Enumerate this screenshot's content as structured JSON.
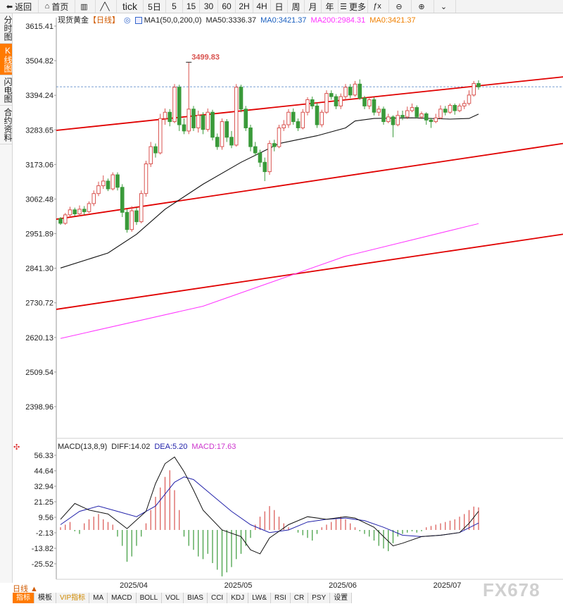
{
  "toolbar": {
    "items": [
      {
        "label": "返回",
        "icon": "back-arrow-icon"
      },
      {
        "label": "首页",
        "icon": "home-icon"
      },
      {
        "label": "",
        "icon": "chart-bars-icon"
      },
      {
        "label": "",
        "icon": "line-chart-icon"
      },
      {
        "label": "tick",
        "icon": ""
      },
      {
        "label": "5日",
        "icon": ""
      },
      {
        "label": "5",
        "icon": ""
      },
      {
        "label": "15",
        "icon": ""
      },
      {
        "label": "30",
        "icon": ""
      },
      {
        "label": "60",
        "icon": ""
      },
      {
        "label": "2H",
        "icon": ""
      },
      {
        "label": "4H",
        "icon": ""
      },
      {
        "label": "日",
        "icon": ""
      },
      {
        "label": "周",
        "icon": ""
      },
      {
        "label": "月",
        "icon": ""
      },
      {
        "label": "年",
        "icon": ""
      },
      {
        "label": "更多",
        "icon": "menu-icon"
      },
      {
        "label": "",
        "icon": "fx-icon"
      },
      {
        "label": "",
        "icon": "zoom-out-icon"
      },
      {
        "label": "",
        "icon": "zoom-in-icon"
      },
      {
        "label": "",
        "icon": "chevron-down-icon"
      }
    ]
  },
  "sidebar": {
    "tabs": [
      {
        "label": "分时图",
        "active": false
      },
      {
        "label": "K线图",
        "active": true
      },
      {
        "label": "闪电图",
        "active": false
      },
      {
        "label": "合约资料",
        "active": false
      }
    ]
  },
  "main_legend": {
    "symbol": "现货黄金",
    "period": "【日线】",
    "ma1": "MA1(50,0,200,0)",
    "ma50": "MA50:3336.37",
    "ma0": "MA0:3421.37",
    "ma200": "MA200:2984.31",
    "ma0b": "MA0:3421.37"
  },
  "macd_legend": {
    "name": "MACD(13,8,9)",
    "diff": "DIFF:14.02",
    "dea": "DEA:5.20",
    "macd": "MACD:17.63"
  },
  "bottom": {
    "period_select": "日线 ▲",
    "tabs": [
      {
        "label": "指标",
        "active": true
      },
      {
        "label": "模板",
        "active": false
      },
      {
        "label": "VIP指标",
        "active": false,
        "vip": true
      },
      {
        "label": "MA",
        "active": false
      },
      {
        "label": "MACD",
        "active": false
      },
      {
        "label": "BOLL",
        "active": false
      },
      {
        "label": "VOL",
        "active": false
      },
      {
        "label": "BIAS",
        "active": false
      },
      {
        "label": "CCI",
        "active": false
      },
      {
        "label": "KDJ",
        "active": false
      },
      {
        "label": "LW&",
        "active": false
      },
      {
        "label": "RSI",
        "active": false
      },
      {
        "label": "CR",
        "active": false
      },
      {
        "label": "PSY",
        "active": false
      },
      {
        "label": "设置",
        "active": false
      }
    ]
  },
  "watermark": "FX678",
  "colors": {
    "up": "#d9534f",
    "down": "#3a9a3a",
    "ma50": "#111111",
    "ma200": "#ff33ff",
    "channel": "#e00000",
    "diff": "#111111",
    "dea": "#2222aa",
    "macd_color": "#cc33cc"
  },
  "chart_data": [
    {
      "type": "candlestick",
      "title": "现货黄金【日线】",
      "yticks": [
        3615.41,
        3504.82,
        3394.24,
        3283.65,
        3173.06,
        3062.48,
        2951.89,
        2841.3,
        2730.72,
        2620.13,
        2509.54,
        2398.96
      ],
      "ylim": [
        2351,
        3637
      ],
      "xticks": [
        {
          "label": "2025/04",
          "index": 16
        },
        {
          "label": "2025/05",
          "index": 38
        },
        {
          "label": "2025/06",
          "index": 60
        },
        {
          "label": "2025/07",
          "index": 82
        }
      ],
      "max_annotation": {
        "label": "3499.83",
        "index": 27,
        "value": 3499.83
      },
      "current_price": 3421.37,
      "candles": [
        [
          3000,
          2985,
          3005,
          2980
        ],
        [
          2985,
          3012,
          3018,
          2980
        ],
        [
          3012,
          3028,
          3038,
          3005
        ],
        [
          3028,
          3015,
          3035,
          3008
        ],
        [
          3015,
          3030,
          3042,
          3008
        ],
        [
          3030,
          3022,
          3040,
          3012
        ],
        [
          3022,
          3048,
          3055,
          3018
        ],
        [
          3048,
          3080,
          3090,
          3040
        ],
        [
          3080,
          3105,
          3118,
          3072
        ],
        [
          3105,
          3120,
          3138,
          3095
        ],
        [
          3120,
          3095,
          3128,
          3088
        ],
        [
          3095,
          3140,
          3148,
          3090
        ],
        [
          3140,
          3100,
          3148,
          3090
        ],
        [
          3100,
          3020,
          3110,
          3005
        ],
        [
          3020,
          2965,
          3030,
          2955
        ],
        [
          2965,
          3025,
          3040,
          2958
        ],
        [
          3025,
          2990,
          3035,
          2980
        ],
        [
          2990,
          3080,
          3090,
          2985
        ],
        [
          3080,
          3175,
          3185,
          3070
        ],
        [
          3175,
          3230,
          3245,
          3165
        ],
        [
          3230,
          3210,
          3240,
          3195
        ],
        [
          3210,
          3320,
          3335,
          3205
        ],
        [
          3320,
          3340,
          3352,
          3300
        ],
        [
          3340,
          3310,
          3350,
          3295
        ],
        [
          3310,
          3420,
          3430,
          3305
        ],
        [
          3420,
          3300,
          3428,
          3280
        ],
        [
          3300,
          3280,
          3320,
          3270
        ],
        [
          3280,
          3350,
          3499.83,
          3270
        ],
        [
          3350,
          3290,
          3360,
          3280
        ],
        [
          3290,
          3330,
          3345,
          3275
        ],
        [
          3330,
          3285,
          3340,
          3270
        ],
        [
          3285,
          3340,
          3352,
          3278
        ],
        [
          3340,
          3260,
          3348,
          3250
        ],
        [
          3260,
          3230,
          3272,
          3220
        ],
        [
          3230,
          3310,
          3320,
          3220
        ],
        [
          3310,
          3260,
          3318,
          3245
        ],
        [
          3260,
          3235,
          3280,
          3225
        ],
        [
          3235,
          3420,
          3430,
          3230
        ],
        [
          3420,
          3350,
          3428,
          3340
        ],
        [
          3350,
          3290,
          3360,
          3280
        ],
        [
          3290,
          3230,
          3300,
          3215
        ],
        [
          3230,
          3210,
          3245,
          3200
        ],
        [
          3210,
          3180,
          3220,
          3165
        ],
        [
          3180,
          3150,
          3195,
          3120
        ],
        [
          3150,
          3240,
          3250,
          3140
        ],
        [
          3240,
          3230,
          3252,
          3215
        ],
        [
          3230,
          3290,
          3300,
          3225
        ],
        [
          3290,
          3300,
          3315,
          3280
        ],
        [
          3300,
          3340,
          3350,
          3290
        ],
        [
          3340,
          3310,
          3352,
          3300
        ],
        [
          3310,
          3290,
          3320,
          3280
        ],
        [
          3290,
          3340,
          3350,
          3285
        ],
        [
          3340,
          3380,
          3388,
          3330
        ],
        [
          3380,
          3360,
          3390,
          3350
        ],
        [
          3360,
          3300,
          3370,
          3290
        ],
        [
          3300,
          3340,
          3348,
          3292
        ],
        [
          3340,
          3400,
          3410,
          3335
        ],
        [
          3400,
          3390,
          3410,
          3380
        ],
        [
          3390,
          3360,
          3398,
          3350
        ],
        [
          3360,
          3390,
          3400,
          3350
        ],
        [
          3390,
          3420,
          3430,
          3380
        ],
        [
          3420,
          3395,
          3430,
          3385
        ],
        [
          3395,
          3430,
          3440,
          3390
        ],
        [
          3430,
          3385,
          3445,
          3380
        ],
        [
          3385,
          3360,
          3392,
          3350
        ],
        [
          3360,
          3380,
          3388,
          3350
        ],
        [
          3380,
          3340,
          3388,
          3330
        ],
        [
          3340,
          3350,
          3360,
          3328
        ],
        [
          3350,
          3310,
          3358,
          3300
        ],
        [
          3310,
          3325,
          3335,
          3305
        ],
        [
          3325,
          3300,
          3330,
          3260
        ],
        [
          3300,
          3330,
          3345,
          3295
        ],
        [
          3330,
          3325,
          3345,
          3315
        ],
        [
          3325,
          3345,
          3358,
          3318
        ],
        [
          3345,
          3355,
          3368,
          3340
        ],
        [
          3355,
          3325,
          3362,
          3320
        ],
        [
          3325,
          3335,
          3342,
          3318
        ],
        [
          3335,
          3315,
          3340,
          3300
        ],
        [
          3315,
          3310,
          3322,
          3290
        ],
        [
          3310,
          3322,
          3335,
          3305
        ],
        [
          3322,
          3350,
          3362,
          3318
        ],
        [
          3350,
          3340,
          3360,
          3330
        ],
        [
          3340,
          3362,
          3368,
          3335
        ],
        [
          3362,
          3345,
          3368,
          3332
        ],
        [
          3345,
          3360,
          3368,
          3340
        ],
        [
          3360,
          3368,
          3378,
          3350
        ],
        [
          3368,
          3395,
          3410,
          3362
        ],
        [
          3395,
          3432,
          3440,
          3390
        ],
        [
          3432,
          3421,
          3442,
          3412
        ]
      ],
      "ma50": {
        "start": [
          0,
          2842
        ],
        "points": [
          [
            0,
            2842
          ],
          [
            10,
            2890
          ],
          [
            16,
            2950
          ],
          [
            22,
            3030
          ],
          [
            30,
            3110
          ],
          [
            38,
            3180
          ],
          [
            46,
            3240
          ],
          [
            54,
            3265
          ],
          [
            60,
            3290
          ],
          [
            62,
            3312
          ],
          [
            66,
            3320
          ],
          [
            74,
            3322
          ],
          [
            82,
            3318
          ],
          [
            86,
            3320
          ],
          [
            88,
            3334
          ]
        ]
      },
      "ma200": {
        "points": [
          [
            0,
            2617
          ],
          [
            30,
            2720
          ],
          [
            60,
            2880
          ],
          [
            88,
            2984
          ]
        ]
      },
      "channels": [
        {
          "start": [
            0,
            3282
          ],
          "end": [
            98,
            3453
          ]
        },
        {
          "start": [
            0,
            2998
          ],
          "end": [
            98,
            3240
          ]
        },
        {
          "start": [
            0,
            2710
          ],
          "end": [
            98,
            2950
          ]
        }
      ]
    },
    {
      "type": "macd",
      "title": "MACD(13,8,9)",
      "yticks": [
        56.33,
        44.64,
        32.94,
        21.25,
        9.56,
        -2.13,
        -13.82,
        -25.52
      ],
      "ylim": [
        -37,
        62
      ],
      "histogram": [
        2,
        4,
        6,
        -1,
        -3,
        5,
        8,
        10,
        12,
        8,
        6,
        4,
        -5,
        -12,
        -24,
        -20,
        -12,
        -5,
        5,
        15,
        25,
        32,
        40,
        45,
        30,
        15,
        -5,
        -12,
        -15,
        -20,
        -22,
        -18,
        -25,
        -30,
        -35,
        -32,
        -28,
        -22,
        -18,
        -12,
        -6,
        4,
        10,
        14,
        18,
        15,
        10,
        5,
        2,
        0,
        -2,
        -4,
        -6,
        -8,
        -3,
        2,
        4,
        6,
        8,
        10,
        8,
        5,
        2,
        -1,
        -3,
        -5,
        -8,
        -12,
        -14,
        -16,
        -10,
        -5,
        -3,
        -2,
        -1,
        -2,
        -1,
        2,
        3,
        4,
        5,
        6,
        7,
        8,
        10,
        12,
        15,
        17.63,
        17
      ],
      "diff": {
        "points": [
          [
            0,
            8
          ],
          [
            3,
            20
          ],
          [
            6,
            15
          ],
          [
            10,
            12
          ],
          [
            14,
            1
          ],
          [
            18,
            14
          ],
          [
            20,
            35
          ],
          [
            22,
            50
          ],
          [
            24,
            55
          ],
          [
            26,
            44
          ],
          [
            28,
            30
          ],
          [
            30,
            15
          ],
          [
            34,
            0
          ],
          [
            38,
            -5
          ],
          [
            40,
            -15
          ],
          [
            42,
            -18
          ],
          [
            44,
            -6
          ],
          [
            48,
            4
          ],
          [
            52,
            10
          ],
          [
            56,
            8
          ],
          [
            60,
            10
          ],
          [
            62,
            9
          ],
          [
            66,
            2
          ],
          [
            70,
            -12
          ],
          [
            72,
            -10
          ],
          [
            76,
            -5
          ],
          [
            80,
            -4
          ],
          [
            84,
            -2
          ],
          [
            86,
            5
          ],
          [
            88,
            14.02
          ]
        ]
      },
      "dea": {
        "points": [
          [
            0,
            4
          ],
          [
            4,
            14
          ],
          [
            8,
            18
          ],
          [
            12,
            14
          ],
          [
            16,
            10
          ],
          [
            20,
            18
          ],
          [
            24,
            36
          ],
          [
            26,
            40
          ],
          [
            28,
            38
          ],
          [
            32,
            26
          ],
          [
            36,
            14
          ],
          [
            40,
            4
          ],
          [
            44,
            -2
          ],
          [
            48,
            0
          ],
          [
            52,
            6
          ],
          [
            56,
            8
          ],
          [
            60,
            9
          ],
          [
            64,
            7
          ],
          [
            68,
            2
          ],
          [
            72,
            -4
          ],
          [
            76,
            -5
          ],
          [
            80,
            -4
          ],
          [
            84,
            -2
          ],
          [
            88,
            5.2
          ]
        ]
      }
    }
  ]
}
